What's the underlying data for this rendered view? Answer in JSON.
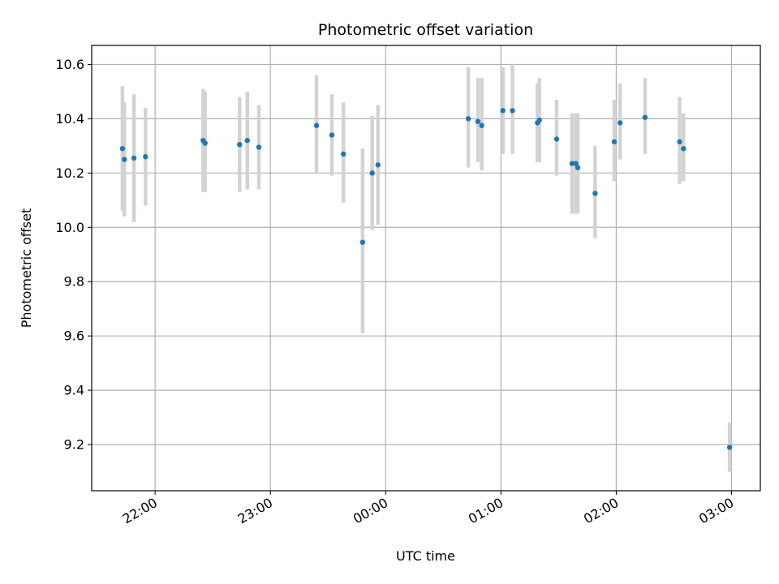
{
  "chart_data": {
    "type": "scatter",
    "title": "Photometric offset variation",
    "xlabel": "UTC time",
    "ylabel": "Photometric offset",
    "grid": true,
    "x_unit": "UTC time (HH:MM, night spanning midnight)",
    "x_ticks": [
      "22:00",
      "23:00",
      "00:00",
      "01:00",
      "02:00",
      "03:00"
    ],
    "y_ticks": [
      "9.2",
      "9.4",
      "9.6",
      "9.8",
      "10.0",
      "10.2",
      "10.4",
      "10.6"
    ],
    "xlim": [
      "21:27",
      "03:15"
    ],
    "ylim": [
      9.03,
      10.67
    ],
    "point_color": "#1f77b4",
    "errorbar_color": "#d3d3d3",
    "series": [
      {
        "points": [
          {
            "x": "21:43",
            "y": 10.29,
            "low": 10.06,
            "high": 10.52
          },
          {
            "x": "21:44",
            "y": 10.25,
            "low": 10.04,
            "high": 10.46
          },
          {
            "x": "21:49",
            "y": 10.255,
            "low": 10.02,
            "high": 10.49
          },
          {
            "x": "21:55",
            "y": 10.26,
            "low": 10.08,
            "high": 10.44
          },
          {
            "x": "22:25",
            "y": 10.32,
            "low": 10.13,
            "high": 10.51
          },
          {
            "x": "22:26",
            "y": 10.31,
            "low": 10.13,
            "high": 10.5
          },
          {
            "x": "22:44",
            "y": 10.305,
            "low": 10.13,
            "high": 10.48
          },
          {
            "x": "22:48",
            "y": 10.32,
            "low": 10.14,
            "high": 10.5
          },
          {
            "x": "22:54",
            "y": 10.295,
            "low": 10.14,
            "high": 10.45
          },
          {
            "x": "23:24",
            "y": 10.375,
            "low": 10.2,
            "high": 10.56
          },
          {
            "x": "23:32",
            "y": 10.34,
            "low": 10.19,
            "high": 10.49
          },
          {
            "x": "23:38",
            "y": 10.27,
            "low": 10.09,
            "high": 10.46
          },
          {
            "x": "23:48",
            "y": 9.945,
            "low": 9.61,
            "high": 10.29
          },
          {
            "x": "23:53",
            "y": 10.2,
            "low": 9.99,
            "high": 10.41
          },
          {
            "x": "23:56",
            "y": 10.23,
            "low": 10.01,
            "high": 10.45
          },
          {
            "x": "00:43",
            "y": 10.4,
            "low": 10.22,
            "high": 10.59
          },
          {
            "x": "00:48",
            "y": 10.39,
            "low": 10.24,
            "high": 10.55
          },
          {
            "x": "00:50",
            "y": 10.375,
            "low": 10.21,
            "high": 10.55
          },
          {
            "x": "01:01",
            "y": 10.43,
            "low": 10.27,
            "high": 10.59
          },
          {
            "x": "01:06",
            "y": 10.43,
            "low": 10.27,
            "high": 10.6
          },
          {
            "x": "01:19",
            "y": 10.385,
            "low": 10.24,
            "high": 10.53
          },
          {
            "x": "01:20",
            "y": 10.395,
            "low": 10.24,
            "high": 10.55
          },
          {
            "x": "01:29",
            "y": 10.325,
            "low": 10.19,
            "high": 10.47
          },
          {
            "x": "01:37",
            "y": 10.235,
            "low": 10.05,
            "high": 10.42
          },
          {
            "x": "01:39",
            "y": 10.235,
            "low": 10.05,
            "high": 10.42
          },
          {
            "x": "01:40",
            "y": 10.22,
            "low": 10.05,
            "high": 10.42
          },
          {
            "x": "01:49",
            "y": 10.125,
            "low": 9.96,
            "high": 10.3
          },
          {
            "x": "01:59",
            "y": 10.315,
            "low": 10.17,
            "high": 10.47
          },
          {
            "x": "02:02",
            "y": 10.385,
            "low": 10.25,
            "high": 10.53
          },
          {
            "x": "02:15",
            "y": 10.405,
            "low": 10.27,
            "high": 10.55
          },
          {
            "x": "02:33",
            "y": 10.315,
            "low": 10.16,
            "high": 10.48
          },
          {
            "x": "02:35",
            "y": 10.29,
            "low": 10.17,
            "high": 10.42
          },
          {
            "x": "02:59",
            "y": 9.19,
            "low": 9.1,
            "high": 9.28
          }
        ]
      }
    ]
  }
}
